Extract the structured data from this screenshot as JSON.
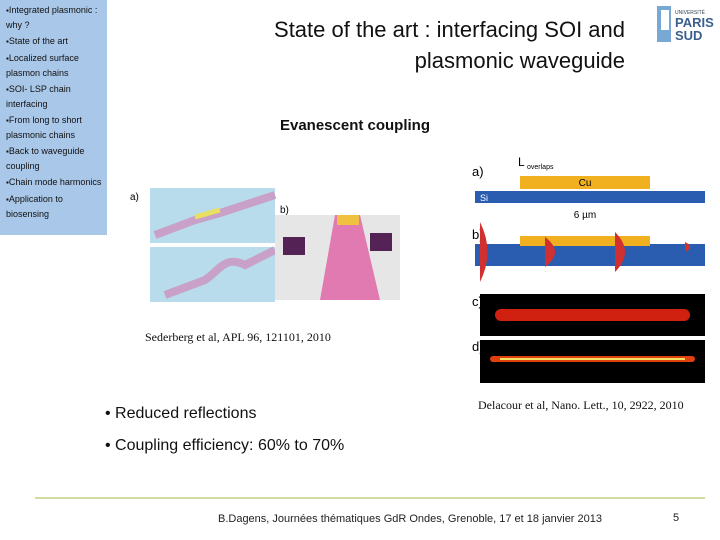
{
  "sidebar": {
    "items": [
      "Integrated plasmonic : why ?",
      "State of the art",
      "Localized surface plasmon chains",
      "SOI- LSP chain interfacing",
      "From long to short plasmonic chains",
      "Back to waveguide coupling",
      "Chain mode harmonics",
      "Application to biosensing"
    ]
  },
  "header": {
    "title": "State of the art : interfacing SOI and plasmonic waveguide",
    "subtitle": "Evanescent coupling"
  },
  "logo": {
    "lines": [
      "UNIVERSITÉ",
      "PARIS",
      "SUD"
    ]
  },
  "figures": [
    {
      "panel_labels": [
        "a)",
        "b)"
      ],
      "caption": "Sederberg et al, APL 96, 121101, 2010"
    },
    {
      "panel_labels": [
        "a)",
        "b)",
        "c)",
        "d)"
      ],
      "labels": [
        "L",
        "overlaps",
        "Cu",
        "Si",
        "6 µm"
      ],
      "caption": "Delacour et al, Nano. Lett., 10, 2922, 2010"
    }
  ],
  "bullets": [
    "Reduced reflections",
    "Coupling efficiency: 60% to 70%"
  ],
  "footer": {
    "text": "B.Dagens, Journées thématiques GdR Ondes, Grenoble, 17 et 18 janvier 2013",
    "page": 5
  }
}
